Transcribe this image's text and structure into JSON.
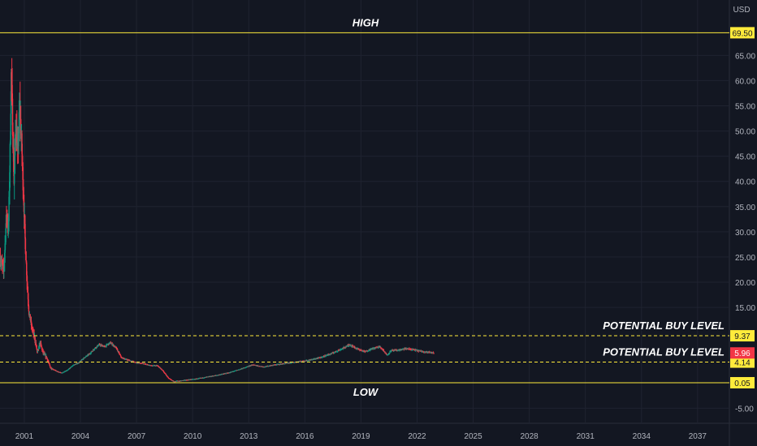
{
  "chart_data": {
    "type": "candlestick",
    "currency": "USD",
    "x_ticks": [
      "2001",
      "2004",
      "2007",
      "2010",
      "2013",
      "2016",
      "2019",
      "2022",
      "2025",
      "2028",
      "2031",
      "2034",
      "2037"
    ],
    "x_range": [
      1999.7,
      2038.7
    ],
    "y_ticks": [
      "65.00",
      "60.00",
      "55.00",
      "50.00",
      "45.00",
      "40.00",
      "35.00",
      "30.00",
      "25.00",
      "20.00",
      "15.00",
      "-5.00"
    ],
    "y_range": [
      -8.0,
      76.0
    ],
    "grid": true,
    "price_path": [
      [
        1999.7,
        25
      ],
      [
        1999.9,
        22
      ],
      [
        2000.05,
        34
      ],
      [
        2000.15,
        30
      ],
      [
        2000.25,
        48
      ],
      [
        2000.3,
        62
      ],
      [
        2000.35,
        55
      ],
      [
        2000.45,
        40
      ],
      [
        2000.55,
        52
      ],
      [
        2000.65,
        45
      ],
      [
        2000.75,
        55
      ],
      [
        2000.85,
        48
      ],
      [
        2000.95,
        38
      ],
      [
        2001.05,
        28
      ],
      [
        2001.15,
        20
      ],
      [
        2001.25,
        14
      ],
      [
        2001.4,
        11
      ],
      [
        2001.55,
        9
      ],
      [
        2001.7,
        6
      ],
      [
        2001.85,
        8
      ],
      [
        2002.0,
        6
      ],
      [
        2002.2,
        5
      ],
      [
        2002.4,
        3
      ],
      [
        2002.6,
        2.6
      ],
      [
        2002.8,
        2.2
      ],
      [
        2003.0,
        2.0
      ],
      [
        2003.3,
        2.5
      ],
      [
        2003.6,
        3.5
      ],
      [
        2003.9,
        4.0
      ],
      [
        2004.2,
        5.0
      ],
      [
        2004.5,
        5.8
      ],
      [
        2004.8,
        7.0
      ],
      [
        2005.0,
        7.6
      ],
      [
        2005.3,
        7.2
      ],
      [
        2005.6,
        8.0
      ],
      [
        2005.9,
        7.0
      ],
      [
        2006.2,
        5.0
      ],
      [
        2006.6,
        4.5
      ],
      [
        2007.0,
        4.0
      ],
      [
        2007.4,
        3.8
      ],
      [
        2007.8,
        3.4
      ],
      [
        2008.1,
        3.5
      ],
      [
        2008.4,
        2.5
      ],
      [
        2008.7,
        1.0
      ],
      [
        2009.0,
        0.3
      ],
      [
        2009.3,
        0.4
      ],
      [
        2009.7,
        0.6
      ],
      [
        2010.2,
        0.8
      ],
      [
        2010.8,
        1.2
      ],
      [
        2011.4,
        1.6
      ],
      [
        2012.0,
        2.1
      ],
      [
        2012.6,
        2.8
      ],
      [
        2013.2,
        3.6
      ],
      [
        2013.8,
        3.2
      ],
      [
        2014.4,
        3.6
      ],
      [
        2015.0,
        3.9
      ],
      [
        2015.6,
        4.2
      ],
      [
        2016.2,
        4.5
      ],
      [
        2016.8,
        5.0
      ],
      [
        2017.4,
        5.8
      ],
      [
        2018.0,
        6.8
      ],
      [
        2018.4,
        7.6
      ],
      [
        2018.8,
        6.8
      ],
      [
        2019.2,
        6.2
      ],
      [
        2019.6,
        6.8
      ],
      [
        2020.0,
        7.2
      ],
      [
        2020.2,
        6.5
      ],
      [
        2020.4,
        5.5
      ],
      [
        2020.6,
        6.4
      ],
      [
        2021.0,
        6.5
      ],
      [
        2021.4,
        6.8
      ],
      [
        2021.8,
        6.6
      ],
      [
        2022.2,
        6.3
      ],
      [
        2022.6,
        6.1
      ],
      [
        2022.9,
        5.96
      ]
    ],
    "last_price": 5.96,
    "levels": [
      {
        "value": 69.5,
        "label": "69.50",
        "annotation": "HIGH",
        "style": "solid",
        "color": "#ffeb3b",
        "text_color": "#131722"
      },
      {
        "value": 9.37,
        "label": "9.37",
        "annotation": "POTENTIAL BUY LEVEL",
        "style": "dashed",
        "color": "#ffeb3b",
        "text_color": "#131722"
      },
      {
        "value": 4.14,
        "label": "4.14",
        "annotation": "POTENTIAL BUY LEVEL",
        "style": "dashed",
        "color": "#ffeb3b",
        "text_color": "#131722"
      },
      {
        "value": 0.05,
        "label": "0.05",
        "annotation": "LOW",
        "style": "solid",
        "color": "#ffeb3b",
        "text_color": "#131722"
      }
    ],
    "last_price_tag": {
      "label": "5.96",
      "color": "#f23645",
      "text_color": "#ffffff"
    },
    "colors": {
      "up": "#089981",
      "down": "#f23645",
      "background": "#131722",
      "grid": "#1f2330"
    }
  }
}
